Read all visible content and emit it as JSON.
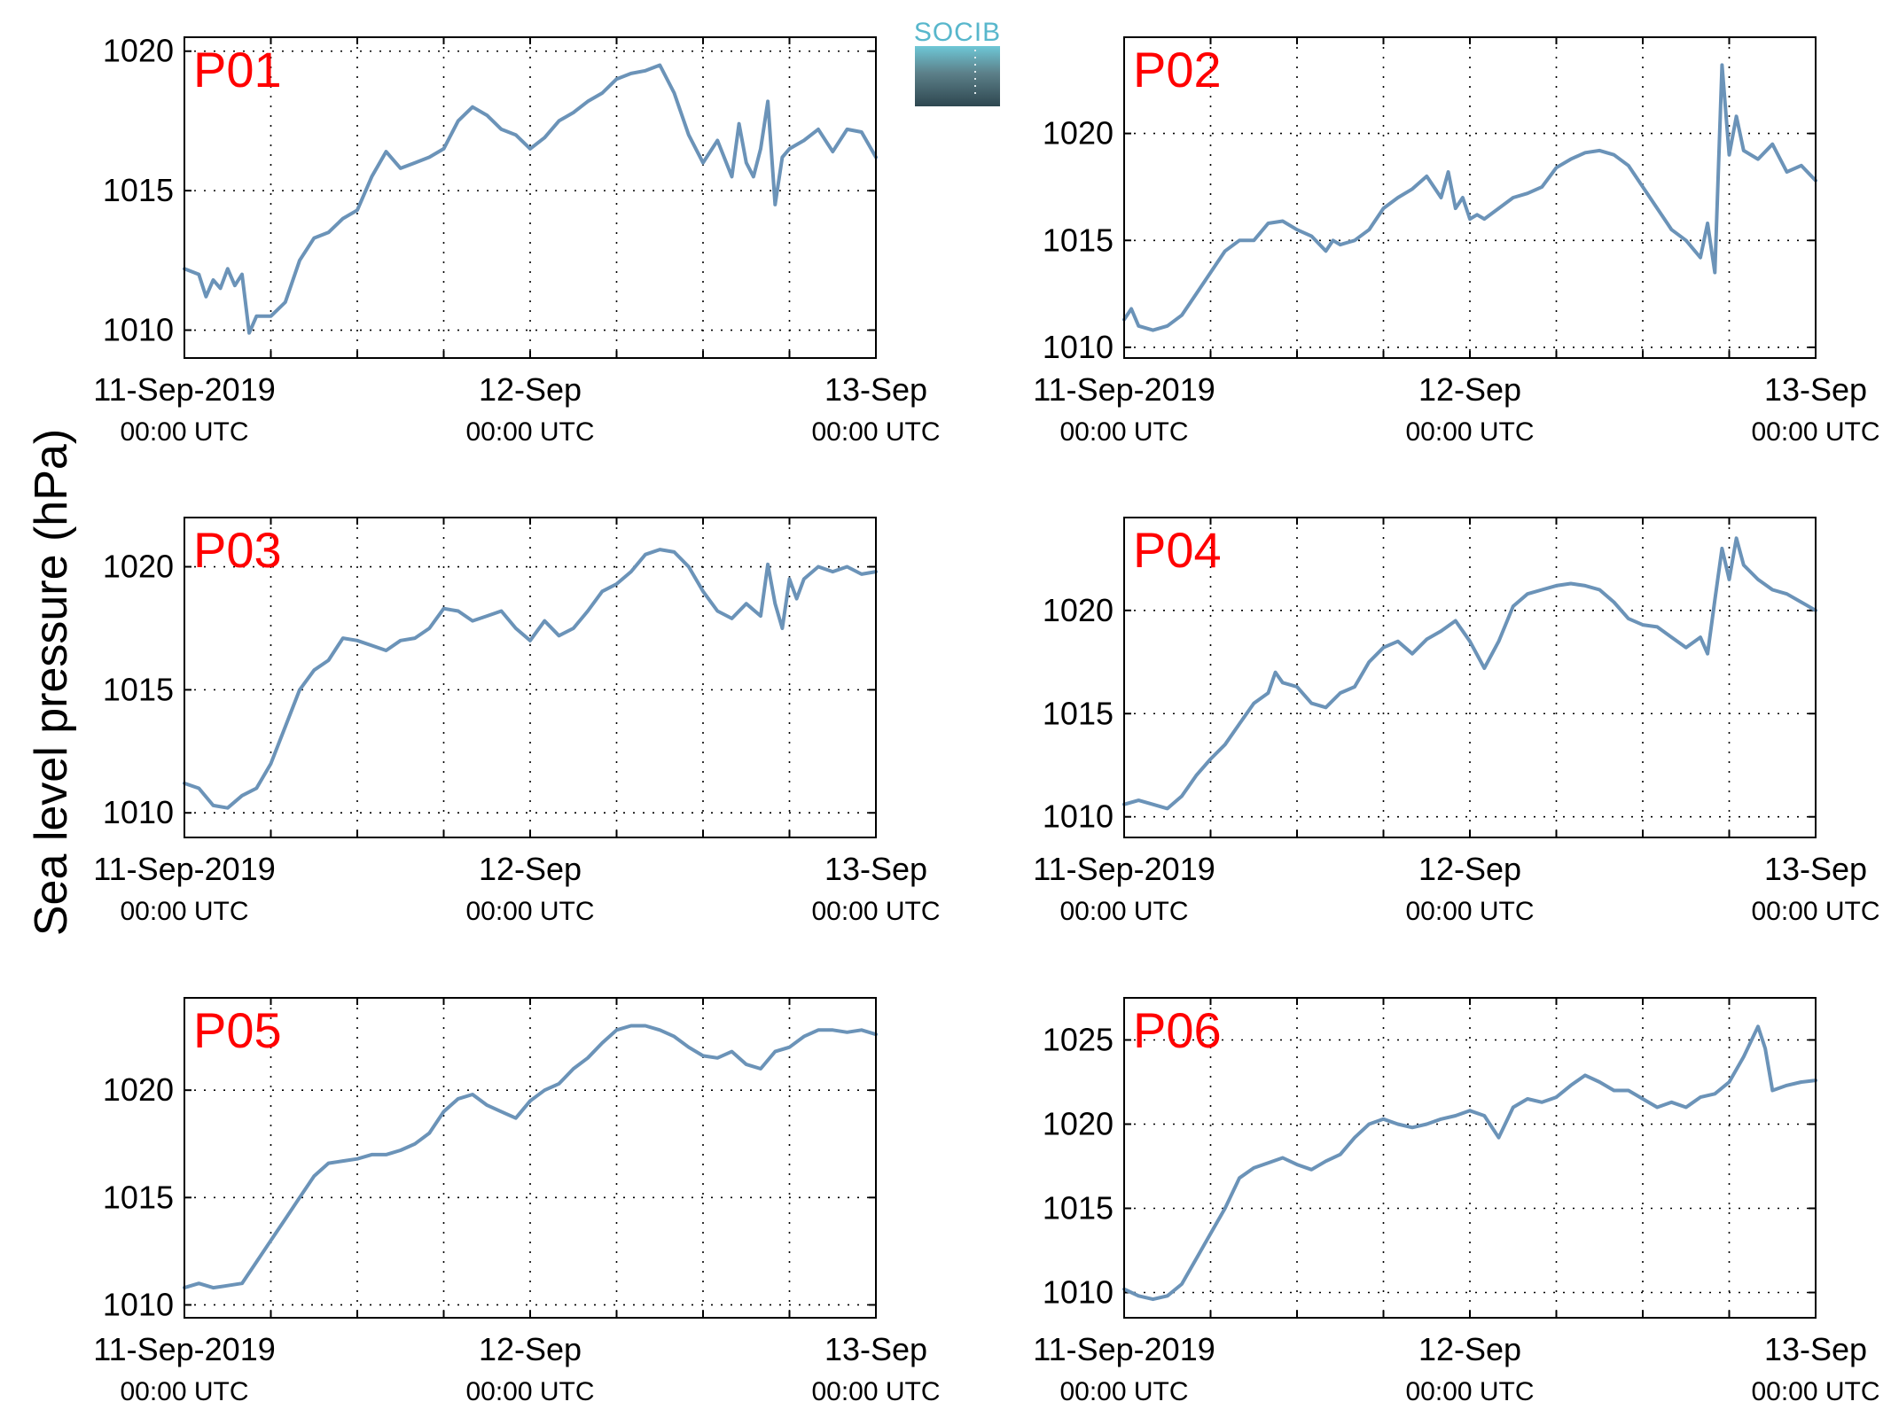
{
  "figure": {
    "ylabel": "Sea level pressure (hPa)",
    "logo_text": "SOCIB"
  },
  "colors": {
    "series": "#6b93b8",
    "panel_label": "#ff0000",
    "logo_text": "#58b7cc"
  },
  "chart_data": [
    {
      "type": "line",
      "panel_label": "P01",
      "x_ticks": [
        {
          "label": "11-Sep-2019",
          "sub": "00:00 UTC"
        },
        {
          "label": "12-Sep",
          "sub": "00:00 UTC"
        },
        {
          "label": "13-Sep",
          "sub": "00:00 UTC"
        }
      ],
      "xlim_hours": [
        0,
        48
      ],
      "grid_every_hours": 6,
      "yticks": [
        1010,
        1015,
        1020
      ],
      "ylim": [
        1009,
        1020.5
      ],
      "series": [
        {
          "x": [
            0,
            1,
            1.5,
            2,
            2.5,
            3,
            3.5,
            4,
            4.5,
            5,
            6,
            7,
            8,
            9,
            10,
            11,
            12,
            13,
            14,
            15,
            16,
            17,
            18,
            19,
            20,
            21,
            22,
            23,
            24,
            25,
            26,
            27,
            28,
            29,
            30,
            31,
            32,
            33,
            34,
            35,
            36,
            37,
            38,
            38.5,
            39,
            39.5,
            40,
            40.5,
            41,
            41.5,
            42,
            43,
            44,
            45,
            46,
            47,
            48
          ],
          "values": [
            1012.2,
            1012.0,
            1011.2,
            1011.8,
            1011.5,
            1012.2,
            1011.6,
            1012.0,
            1009.9,
            1010.5,
            1010.5,
            1011.0,
            1012.5,
            1013.3,
            1013.5,
            1014.0,
            1014.3,
            1015.5,
            1016.4,
            1015.8,
            1016.0,
            1016.2,
            1016.5,
            1017.5,
            1018.0,
            1017.7,
            1017.2,
            1017.0,
            1016.5,
            1016.9,
            1017.5,
            1017.8,
            1018.2,
            1018.5,
            1019.0,
            1019.2,
            1019.3,
            1019.5,
            1018.5,
            1017.0,
            1016.0,
            1016.8,
            1015.5,
            1017.4,
            1016.0,
            1015.5,
            1016.5,
            1018.2,
            1014.5,
            1016.2,
            1016.5,
            1016.8,
            1017.2,
            1016.4,
            1017.2,
            1017.1,
            1016.2
          ]
        }
      ]
    },
    {
      "type": "line",
      "panel_label": "P02",
      "x_ticks": [
        {
          "label": "11-Sep-2019",
          "sub": "00:00 UTC"
        },
        {
          "label": "12-Sep",
          "sub": "00:00 UTC"
        },
        {
          "label": "13-Sep",
          "sub": "00:00 UTC"
        }
      ],
      "xlim_hours": [
        0,
        48
      ],
      "grid_every_hours": 6,
      "yticks": [
        1010,
        1015,
        1020
      ],
      "ylim": [
        1009.5,
        1024.5
      ],
      "series": [
        {
          "x": [
            0,
            0.5,
            1,
            2,
            3,
            4,
            5,
            6,
            7,
            8,
            9,
            10,
            11,
            12,
            13,
            14,
            14.5,
            15,
            16,
            17,
            18,
            19,
            20,
            21,
            22,
            22.5,
            23,
            23.5,
            24,
            24.5,
            25,
            26,
            27,
            28,
            29,
            30,
            31,
            32,
            33,
            34,
            35,
            36,
            37,
            38,
            39,
            40,
            40.5,
            41,
            41.5,
            42,
            42.5,
            43,
            44,
            45,
            46,
            47,
            48
          ],
          "values": [
            1011.3,
            1011.8,
            1011.0,
            1010.8,
            1011.0,
            1011.5,
            1012.5,
            1013.5,
            1014.5,
            1015.0,
            1015.0,
            1015.8,
            1015.9,
            1015.5,
            1015.2,
            1014.5,
            1015.0,
            1014.8,
            1015.0,
            1015.5,
            1016.5,
            1017.0,
            1017.4,
            1018.0,
            1017.0,
            1018.2,
            1016.5,
            1017.0,
            1016.0,
            1016.2,
            1016.0,
            1016.5,
            1017.0,
            1017.2,
            1017.5,
            1018.4,
            1018.8,
            1019.1,
            1019.2,
            1019.0,
            1018.5,
            1017.5,
            1016.5,
            1015.5,
            1015.0,
            1014.2,
            1015.8,
            1013.5,
            1023.2,
            1019.0,
            1020.8,
            1019.2,
            1018.8,
            1019.5,
            1018.2,
            1018.5,
            1017.8
          ]
        }
      ]
    },
    {
      "type": "line",
      "panel_label": "P03",
      "x_ticks": [
        {
          "label": "11-Sep-2019",
          "sub": "00:00 UTC"
        },
        {
          "label": "12-Sep",
          "sub": "00:00 UTC"
        },
        {
          "label": "13-Sep",
          "sub": "00:00 UTC"
        }
      ],
      "xlim_hours": [
        0,
        48
      ],
      "grid_every_hours": 6,
      "yticks": [
        1010,
        1015,
        1020
      ],
      "ylim": [
        1009,
        1022
      ],
      "series": [
        {
          "x": [
            0,
            1,
            2,
            3,
            4,
            5,
            6,
            7,
            8,
            9,
            10,
            11,
            12,
            13,
            14,
            15,
            16,
            17,
            18,
            19,
            20,
            21,
            22,
            23,
            24,
            25,
            26,
            27,
            28,
            29,
            30,
            31,
            32,
            33,
            34,
            35,
            36,
            37,
            38,
            39,
            40,
            40.5,
            41,
            41.5,
            42,
            42.5,
            43,
            44,
            45,
            46,
            47,
            48
          ],
          "values": [
            1011.2,
            1011.0,
            1010.3,
            1010.2,
            1010.7,
            1011.0,
            1012.0,
            1013.5,
            1015.0,
            1015.8,
            1016.2,
            1017.1,
            1017.0,
            1016.8,
            1016.6,
            1017.0,
            1017.1,
            1017.5,
            1018.3,
            1018.2,
            1017.8,
            1018.0,
            1018.2,
            1017.5,
            1017.0,
            1017.8,
            1017.2,
            1017.5,
            1018.2,
            1019.0,
            1019.3,
            1019.8,
            1020.5,
            1020.7,
            1020.6,
            1020.0,
            1019.0,
            1018.2,
            1017.9,
            1018.5,
            1018.0,
            1020.1,
            1018.5,
            1017.5,
            1019.5,
            1018.7,
            1019.5,
            1020.0,
            1019.8,
            1020.0,
            1019.7,
            1019.8
          ]
        }
      ]
    },
    {
      "type": "line",
      "panel_label": "P04",
      "x_ticks": [
        {
          "label": "11-Sep-2019",
          "sub": "00:00 UTC"
        },
        {
          "label": "12-Sep",
          "sub": "00:00 UTC"
        },
        {
          "label": "13-Sep",
          "sub": "00:00 UTC"
        }
      ],
      "xlim_hours": [
        0,
        48
      ],
      "grid_every_hours": 6,
      "yticks": [
        1010,
        1015,
        1020
      ],
      "ylim": [
        1009,
        1024.5
      ],
      "series": [
        {
          "x": [
            0,
            1,
            2,
            3,
            4,
            5,
            6,
            7,
            8,
            9,
            10,
            10.5,
            11,
            12,
            13,
            14,
            15,
            16,
            17,
            18,
            19,
            20,
            21,
            22,
            23,
            24,
            25,
            26,
            27,
            28,
            29,
            30,
            31,
            32,
            33,
            34,
            35,
            36,
            37,
            38,
            39,
            40,
            40.5,
            41,
            41.5,
            42,
            42.5,
            43,
            44,
            45,
            46,
            47,
            48
          ],
          "values": [
            1010.6,
            1010.8,
            1010.6,
            1010.4,
            1011.0,
            1012.0,
            1012.8,
            1013.5,
            1014.5,
            1015.5,
            1016.0,
            1017.0,
            1016.5,
            1016.3,
            1015.5,
            1015.3,
            1016.0,
            1016.3,
            1017.5,
            1018.2,
            1018.5,
            1017.9,
            1018.6,
            1019.0,
            1019.5,
            1018.5,
            1017.2,
            1018.5,
            1020.2,
            1020.8,
            1021.0,
            1021.2,
            1021.3,
            1021.2,
            1021.0,
            1020.4,
            1019.6,
            1019.3,
            1019.2,
            1018.7,
            1018.2,
            1018.7,
            1017.9,
            1020.5,
            1023.0,
            1021.5,
            1023.5,
            1022.2,
            1021.5,
            1021.0,
            1020.8,
            1020.4,
            1020.0
          ]
        }
      ]
    },
    {
      "type": "line",
      "panel_label": "P05",
      "x_ticks": [
        {
          "label": "11-Sep-2019",
          "sub": "00:00 UTC"
        },
        {
          "label": "12-Sep",
          "sub": "00:00 UTC"
        },
        {
          "label": "13-Sep",
          "sub": "00:00 UTC"
        }
      ],
      "xlim_hours": [
        0,
        48
      ],
      "grid_every_hours": 6,
      "yticks": [
        1010,
        1015,
        1020
      ],
      "ylim": [
        1009.4,
        1024.3
      ],
      "series": [
        {
          "x": [
            0,
            1,
            2,
            3,
            4,
            5,
            6,
            7,
            8,
            9,
            10,
            11,
            12,
            13,
            14,
            15,
            16,
            17,
            18,
            19,
            20,
            21,
            22,
            23,
            24,
            25,
            26,
            27,
            28,
            29,
            30,
            31,
            32,
            33,
            34,
            35,
            36,
            37,
            38,
            39,
            40,
            41,
            42,
            43,
            44,
            45,
            46,
            47,
            48
          ],
          "values": [
            1010.8,
            1011.0,
            1010.8,
            1010.9,
            1011.0,
            1012.0,
            1013.0,
            1014.0,
            1015.0,
            1016.0,
            1016.6,
            1016.7,
            1016.8,
            1017.0,
            1017.0,
            1017.2,
            1017.5,
            1018.0,
            1019.0,
            1019.6,
            1019.8,
            1019.3,
            1019.0,
            1018.7,
            1019.5,
            1020.0,
            1020.3,
            1021.0,
            1021.5,
            1022.2,
            1022.8,
            1023.0,
            1023.0,
            1022.8,
            1022.5,
            1022.0,
            1021.6,
            1021.5,
            1021.8,
            1021.2,
            1021.0,
            1021.8,
            1022.0,
            1022.5,
            1022.8,
            1022.8,
            1022.7,
            1022.8,
            1022.6
          ]
        }
      ]
    },
    {
      "type": "line",
      "panel_label": "P06",
      "x_ticks": [
        {
          "label": "11-Sep-2019",
          "sub": "00:00 UTC"
        },
        {
          "label": "12-Sep",
          "sub": "00:00 UTC"
        },
        {
          "label": "13-Sep",
          "sub": "00:00 UTC"
        }
      ],
      "xlim_hours": [
        0,
        48
      ],
      "grid_every_hours": 6,
      "yticks": [
        1010,
        1015,
        1020,
        1025
      ],
      "ylim": [
        1008.5,
        1027.5
      ],
      "series": [
        {
          "x": [
            0,
            1,
            2,
            3,
            4,
            5,
            6,
            7,
            8,
            9,
            10,
            11,
            12,
            13,
            14,
            15,
            16,
            17,
            18,
            19,
            20,
            21,
            22,
            23,
            24,
            25,
            26,
            27,
            28,
            29,
            30,
            31,
            32,
            33,
            34,
            35,
            36,
            37,
            38,
            39,
            40,
            41,
            42,
            43,
            44,
            44.5,
            45,
            46,
            47,
            48
          ],
          "values": [
            1010.2,
            1009.8,
            1009.6,
            1009.8,
            1010.5,
            1012.0,
            1013.5,
            1015.0,
            1016.8,
            1017.4,
            1017.7,
            1018.0,
            1017.6,
            1017.3,
            1017.8,
            1018.2,
            1019.2,
            1020.0,
            1020.3,
            1020.0,
            1019.8,
            1020.0,
            1020.3,
            1020.5,
            1020.8,
            1020.5,
            1019.2,
            1021.0,
            1021.5,
            1021.3,
            1021.6,
            1022.3,
            1022.9,
            1022.5,
            1022.0,
            1022.0,
            1021.5,
            1021.0,
            1021.3,
            1021.0,
            1021.6,
            1021.8,
            1022.5,
            1024.0,
            1025.8,
            1024.5,
            1022.0,
            1022.3,
            1022.5,
            1022.6
          ]
        }
      ]
    }
  ]
}
